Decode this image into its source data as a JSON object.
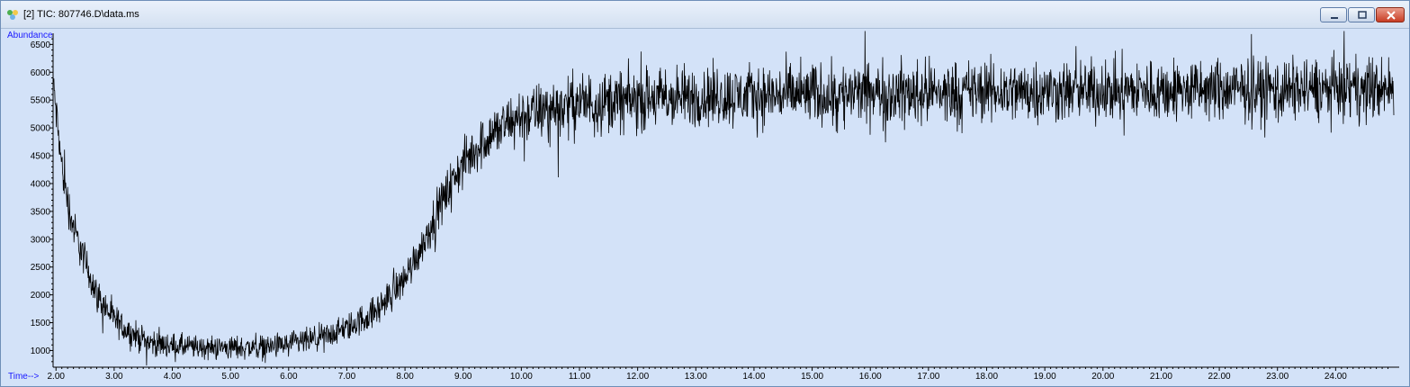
{
  "window": {
    "title": "[2] TIC: 807746.D\\data.ms",
    "icons": {
      "app": "chromatogram-app-icon",
      "minimize": "minimize-icon",
      "maximize": "maximize-icon",
      "close": "close-icon"
    },
    "colors": {
      "plot_background": "#d3e2f8",
      "trace": "#000000",
      "axis_caption": "#1a1aff",
      "close_button": "#c83d24"
    }
  },
  "chart_data": {
    "type": "line",
    "ylabel": "Abundance",
    "xlabel": "Time-->",
    "xlim": [
      1.95,
      25.0
    ],
    "ylim": [
      700,
      6700
    ],
    "x_ticks": [
      "2.00",
      "3.00",
      "4.00",
      "5.00",
      "6.00",
      "7.00",
      "8.00",
      "9.00",
      "10.00",
      "11.00",
      "12.00",
      "13.00",
      "14.00",
      "15.00",
      "16.00",
      "17.00",
      "18.00",
      "19.00",
      "20.00",
      "21.00",
      "22.00",
      "23.00",
      "24.00"
    ],
    "y_ticks": [
      "1000",
      "1500",
      "2000",
      "2500",
      "3000",
      "3500",
      "4000",
      "4500",
      "5000",
      "5500",
      "6000",
      "6500"
    ],
    "grid": false,
    "series": [
      {
        "x": [
          1.95,
          2.0,
          2.1,
          2.2,
          2.3,
          2.5,
          2.7,
          3.0,
          3.3,
          3.6,
          4.0,
          4.5,
          5.0,
          5.5,
          6.0,
          6.5,
          7.0,
          7.5,
          8.0,
          8.3,
          8.6,
          8.9,
          9.2,
          9.5,
          10.0,
          10.5,
          11.0,
          12.0,
          13.0,
          14.0,
          15.0,
          16.0,
          17.0,
          18.0,
          19.0,
          20.0,
          21.0,
          22.0,
          23.0,
          24.0,
          25.0
        ],
        "y": [
          5900,
          5300,
          4300,
          3700,
          3200,
          2600,
          2000,
          1550,
          1300,
          1150,
          1080,
          1050,
          1050,
          1060,
          1100,
          1200,
          1400,
          1700,
          2300,
          2900,
          3600,
          4200,
          4600,
          4900,
          5200,
          5350,
          5450,
          5500,
          5550,
          5580,
          5600,
          5620,
          5640,
          5650,
          5660,
          5660,
          5670,
          5680,
          5690,
          5700,
          5700
        ],
        "noise_amplitude": [
          100,
          300,
          300,
          300,
          280,
          260,
          240,
          220,
          200,
          190,
          180,
          170,
          170,
          170,
          180,
          190,
          200,
          230,
          260,
          280,
          300,
          330,
          350,
          380,
          400,
          420,
          430,
          440,
          440,
          440,
          440,
          440,
          440,
          440,
          440,
          440,
          440,
          440,
          440,
          440,
          440
        ]
      }
    ]
  }
}
